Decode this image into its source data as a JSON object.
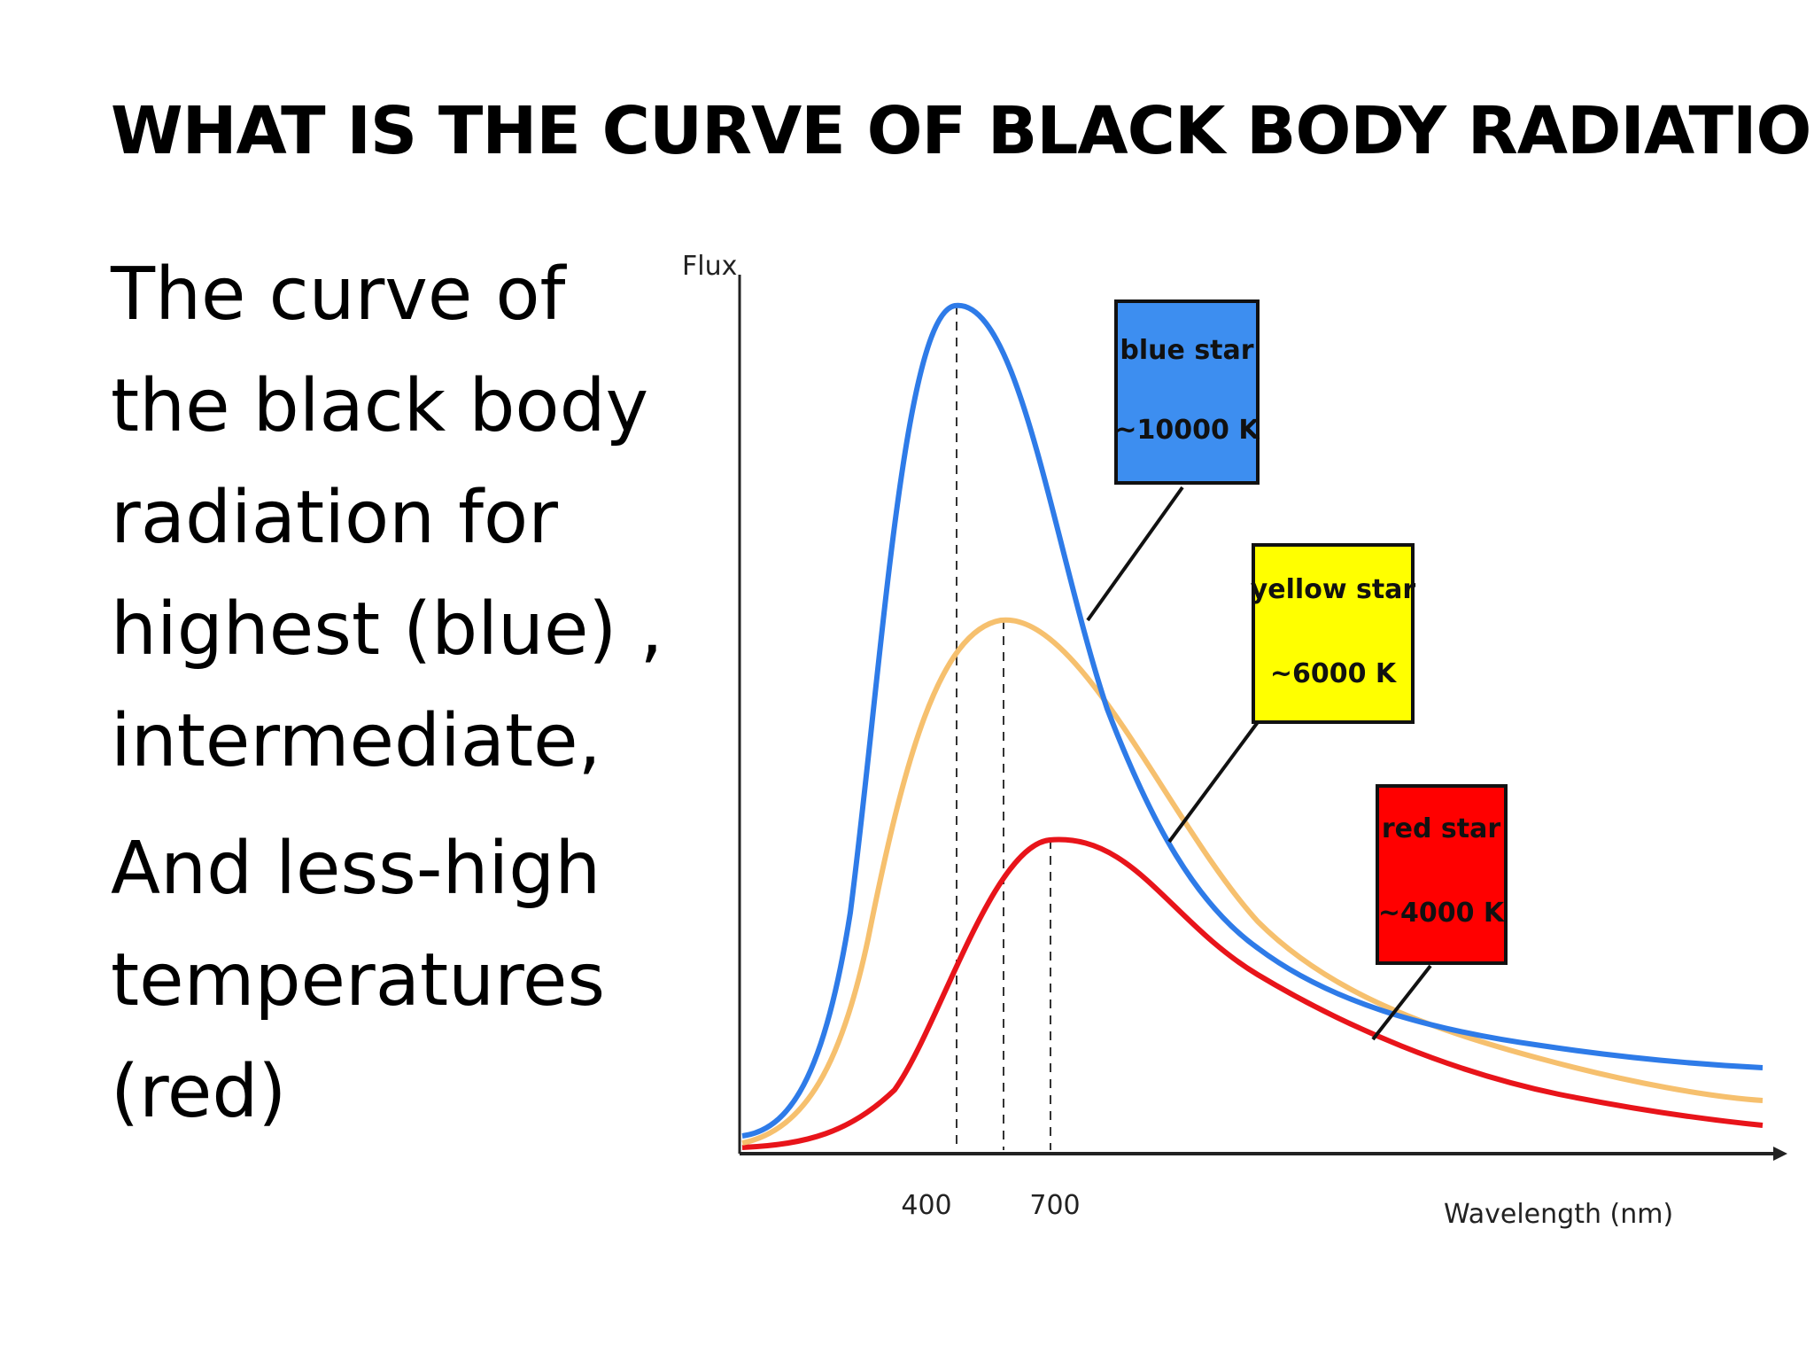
{
  "slide": {
    "title": "WHAT IS THE CURVE OF BLACK BODY RADIATION",
    "paragraph_1": "The curve of the black body radiation for highest (blue) , intermediate,",
    "paragraph_2": "And less-high temperatures (red)"
  },
  "chart_data": {
    "type": "line",
    "ylabel": "Flux",
    "xlabel": "Wavelength (nm)",
    "x_ticks": [
      "400",
      "700"
    ],
    "grid": false,
    "legend_placement": "label boxes with pointer lines at the right of the curves",
    "series": [
      {
        "name": "blue star",
        "label_line_2": "~10000 K",
        "color": "#2e7be8",
        "box_color": "#3d8ef0",
        "peak_at_tick": "400",
        "relative_peak": 1.0
      },
      {
        "name": "yellow star",
        "label_line_2": "~6000 K",
        "color": "#f6c06e",
        "box_color": "#ffff00",
        "relative_peak": 0.63
      },
      {
        "name": "red star",
        "label_line_2": "~4000 K",
        "color": "#e8141a",
        "box_color": "#ff0000",
        "peak_at_tick": "700",
        "relative_peak": 0.36
      }
    ]
  }
}
